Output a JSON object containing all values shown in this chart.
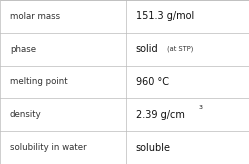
{
  "rows": [
    {
      "label": "molar mass",
      "value": "151.3 g/mol",
      "superscript": null,
      "small_text": null
    },
    {
      "label": "phase",
      "value": "solid",
      "superscript": null,
      "small_text": "(at STP)"
    },
    {
      "label": "melting point",
      "value": "960 °C",
      "superscript": null,
      "small_text": null
    },
    {
      "label": "density",
      "value": "2.39 g/cm",
      "superscript": "3",
      "small_text": null
    },
    {
      "label": "solubility in water",
      "value": "soluble",
      "superscript": null,
      "small_text": null
    }
  ],
  "col_split": 0.505,
  "background_color": "#ffffff",
  "border_color": "#bbbbbb",
  "label_fontsize": 6.2,
  "value_fontsize": 7.0,
  "small_fontsize": 4.8,
  "super_fontsize": 4.5,
  "label_color": "#333333",
  "value_color": "#111111"
}
